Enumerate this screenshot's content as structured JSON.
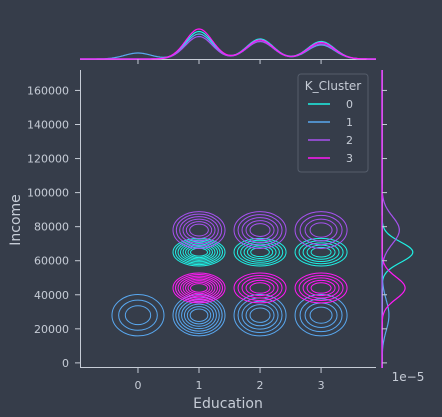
{
  "chart_data": {
    "type": "kde_joint",
    "xlabel": "Education",
    "ylabel": "Income",
    "x_ticks": [
      0,
      1,
      2,
      3
    ],
    "y_ticks": [
      0,
      20000,
      40000,
      60000,
      80000,
      100000,
      120000,
      140000,
      160000
    ],
    "xlim": [
      -0.95,
      3.9
    ],
    "ylim": [
      -3000,
      172000
    ],
    "marginal_y_scale_label": "1e−5",
    "legend": {
      "title": "K_Cluster",
      "placement": "top-right"
    },
    "series": [
      {
        "name": "0",
        "color": "#1ff1e5",
        "x_modes": [
          1,
          2,
          3
        ],
        "x_mode_density": [
          0.55,
          0.4,
          0.35
        ],
        "y_center": 65000,
        "y_spread": 6000,
        "y_peak_density": 0.8
      },
      {
        "name": "1",
        "color": "#59a8f0",
        "x_modes": [
          0,
          1,
          2,
          3
        ],
        "x_mode_density": [
          0.12,
          0.5,
          0.35,
          0.28
        ],
        "y_center": 28000,
        "y_spread": 9000,
        "y_peak_density": 0.18
      },
      {
        "name": "2",
        "color": "#a852f0",
        "x_modes": [
          1,
          2,
          3
        ],
        "x_mode_density": [
          0.45,
          0.35,
          0.3
        ],
        "y_center": 78000,
        "y_spread": 8000,
        "y_peak_density": 0.45
      },
      {
        "name": "3",
        "color": "#ff1af5",
        "x_modes": [
          1,
          2,
          3
        ],
        "x_mode_density": [
          0.6,
          0.38,
          0.33
        ],
        "y_center": 44000,
        "y_spread": 6500,
        "y_peak_density": 0.6
      }
    ]
  }
}
